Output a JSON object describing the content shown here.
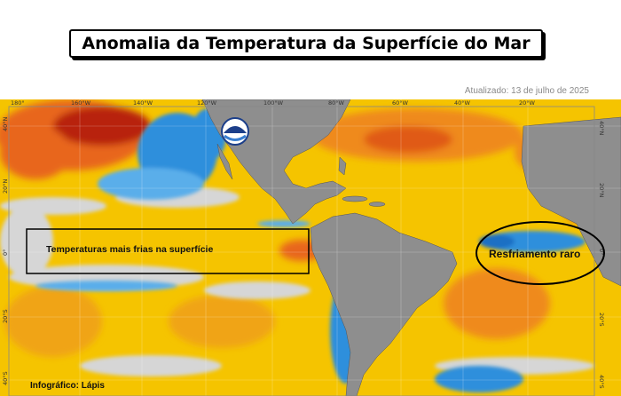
{
  "header": {
    "title": "Anomalia da Temperatura da Superfície do Mar",
    "updated": "Atualizado: 13 de julho de 2025"
  },
  "map": {
    "lon_labels": [
      "180°",
      "160°W",
      "140°W",
      "120°W",
      "100°W",
      "80°W",
      "60°W",
      "40°W",
      "20°W"
    ],
    "lat_labels": [
      "40°N",
      "20°N",
      "0°",
      "20°S",
      "40°S"
    ],
    "agency_logo": "noaa-logo",
    "colors": {
      "warm": "#f5c400",
      "hot": "#e8661a",
      "very_hot": "#b8240f",
      "cool": "#2f8fdc",
      "neutral": "#d6d6d6",
      "land": "#8e8e8e"
    }
  },
  "annotations": {
    "pacific_box": "Temperaturas mais frias na superfície",
    "atlantic_ellipse": "Resfriamento raro"
  },
  "footer": {
    "credit": "Infográfico: Lápis"
  }
}
